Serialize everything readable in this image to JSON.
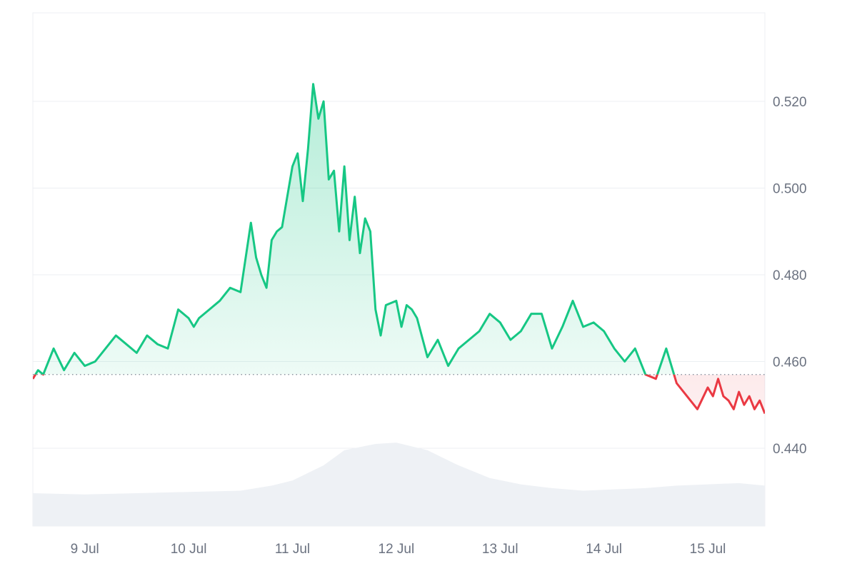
{
  "colors": {
    "up_line": "#16c784",
    "down_line": "#ea3943",
    "volume": "#eef1f5",
    "grid": "#eceff3",
    "baseline": "#7c8593",
    "tick_text": "#6b7280"
  },
  "chart_data": [
    {
      "type": "area",
      "title": "",
      "xlabel": "",
      "ylabel": "",
      "x_ticks": [
        "9 Jul",
        "10 Jul",
        "11 Jul",
        "12 Jul",
        "13 Jul",
        "14 Jul",
        "15 Jul"
      ],
      "y_ticks": [
        "0.440",
        "0.460",
        "0.480",
        "0.500",
        "0.520"
      ],
      "ylim": [
        0.425,
        0.54
      ],
      "baseline": 0.457,
      "grid": true,
      "x_range_days": [
        8.5,
        15.55
      ],
      "series": [
        {
          "values_x": [
            8.5,
            8.55,
            8.6,
            8.7,
            8.8,
            8.9,
            9.0,
            9.1,
            9.2,
            9.3,
            9.4,
            9.5,
            9.6,
            9.7,
            9.8,
            9.9,
            10.0,
            10.05,
            10.1,
            10.2,
            10.3,
            10.4,
            10.5,
            10.6,
            10.65,
            10.7,
            10.75,
            10.8,
            10.85,
            10.9,
            11.0,
            11.05,
            11.1,
            11.15,
            11.2,
            11.25,
            11.3,
            11.35,
            11.4,
            11.45,
            11.5,
            11.55,
            11.6,
            11.65,
            11.7,
            11.75,
            11.8,
            11.85,
            11.9,
            12.0,
            12.05,
            12.1,
            12.15,
            12.2,
            12.3,
            12.4,
            12.5,
            12.6,
            12.7,
            12.8,
            12.9,
            13.0,
            13.1,
            13.2,
            13.3,
            13.4,
            13.5,
            13.6,
            13.7,
            13.8,
            13.9,
            14.0,
            14.1,
            14.2,
            14.3,
            14.4,
            14.5,
            14.6,
            14.7,
            14.8,
            14.9,
            15.0,
            15.05,
            15.1,
            15.15,
            15.2,
            15.25,
            15.3,
            15.35,
            15.4,
            15.45,
            15.5,
            15.55
          ],
          "values_y": [
            0.456,
            0.458,
            0.457,
            0.463,
            0.458,
            0.462,
            0.459,
            0.46,
            0.463,
            0.466,
            0.464,
            0.462,
            0.466,
            0.464,
            0.463,
            0.472,
            0.47,
            0.468,
            0.47,
            0.472,
            0.474,
            0.477,
            0.476,
            0.492,
            0.484,
            0.48,
            0.477,
            0.488,
            0.49,
            0.491,
            0.505,
            0.508,
            0.497,
            0.509,
            0.524,
            0.516,
            0.52,
            0.502,
            0.504,
            0.49,
            0.505,
            0.488,
            0.498,
            0.485,
            0.493,
            0.49,
            0.472,
            0.466,
            0.473,
            0.474,
            0.468,
            0.473,
            0.472,
            0.47,
            0.461,
            0.465,
            0.459,
            0.463,
            0.465,
            0.467,
            0.471,
            0.469,
            0.465,
            0.467,
            0.471,
            0.471,
            0.463,
            0.468,
            0.474,
            0.468,
            0.469,
            0.467,
            0.463,
            0.46,
            0.463,
            0.457,
            0.456,
            0.463,
            0.455,
            0.452,
            0.449,
            0.454,
            0.452,
            0.456,
            0.452,
            0.451,
            0.449,
            0.453,
            0.45,
            0.452,
            0.449,
            0.451,
            0.448
          ]
        }
      ],
      "volume_series": {
        "values_x": [
          8.5,
          9.0,
          9.5,
          10.0,
          10.5,
          10.8,
          11.0,
          11.3,
          11.5,
          11.8,
          12.0,
          12.3,
          12.6,
          12.9,
          13.2,
          13.5,
          13.8,
          14.1,
          14.4,
          14.7,
          15.0,
          15.3,
          15.55
        ],
        "values": [
          0.26,
          0.25,
          0.26,
          0.27,
          0.28,
          0.32,
          0.36,
          0.48,
          0.6,
          0.65,
          0.66,
          0.6,
          0.48,
          0.38,
          0.33,
          0.3,
          0.28,
          0.29,
          0.3,
          0.32,
          0.33,
          0.34,
          0.32
        ]
      }
    }
  ]
}
